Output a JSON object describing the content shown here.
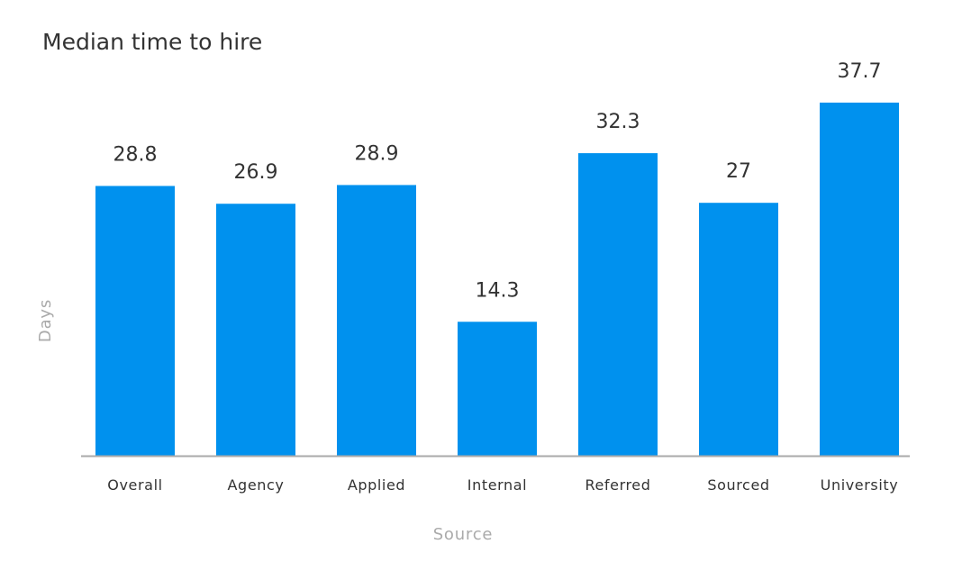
{
  "chart_data": {
    "type": "bar",
    "title": "Median time to hire",
    "xlabel": "Source",
    "ylabel": "Days",
    "categories": [
      "Overall",
      "Agency",
      "Applied",
      "Internal",
      "Referred",
      "Sourced",
      "University"
    ],
    "values": [
      28.8,
      26.9,
      28.9,
      14.3,
      32.3,
      27,
      37.7
    ],
    "value_labels": [
      "28.8",
      "26.9",
      "28.9",
      "14.3",
      "32.3",
      "27",
      "37.7"
    ],
    "ylim": [
      0,
      38
    ],
    "grid": false,
    "legend": "none",
    "colors": {
      "bar": "#0091ee",
      "axis": "#aaaaaa"
    }
  }
}
